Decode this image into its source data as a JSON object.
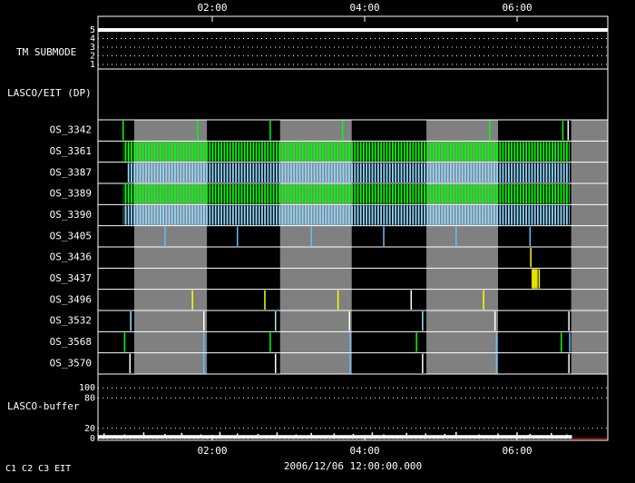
{
  "chart_data": {
    "type": "timeline",
    "xlim": [
      0.5,
      7.19
    ],
    "xticks": [
      {
        "value": 2,
        "label": "02:00"
      },
      {
        "value": 4,
        "label": "04:00"
      },
      {
        "value": 6,
        "label": "06:00"
      }
    ],
    "date": "2006/12/06 12:00:00.000",
    "shading": {
      "color": "#808080",
      "spans": [
        [
          0.976,
          1.93
        ],
        [
          2.89,
          3.83
        ],
        [
          4.81,
          5.75
        ],
        [
          6.71,
          7.19
        ]
      ]
    },
    "tm_submode": {
      "label": "TM SUBMODE",
      "ylim": [
        0.47,
        6.58
      ],
      "yticks": [
        1,
        2,
        3,
        4,
        5
      ],
      "color": "#ffffff",
      "x": [
        0.5,
        7.19
      ],
      "values": [
        5,
        5
      ]
    },
    "dp_label": "LASCO/EIT (DP)",
    "rows": [
      {
        "name": "OS_3342",
        "series": [
          {
            "color": "#00ff00",
            "times": [
              0.83,
              1.81,
              2.76,
              3.71,
              5.64,
              6.6
            ]
          },
          {
            "color": "#ffffff",
            "times": [
              6.67
            ]
          }
        ]
      },
      {
        "name": "OS_3361",
        "series": [
          {
            "color": "#00ff00",
            "spans": [
              [
                0.83,
                6.69
              ]
            ]
          }
        ]
      },
      {
        "name": "OS_3387",
        "series": [
          {
            "color": "#90d8ff",
            "spans": [
              [
                0.88,
                6.69
              ]
            ]
          }
        ]
      },
      {
        "name": "OS_3389",
        "series": [
          {
            "color": "#00ff00",
            "spans": [
              [
                0.83,
                6.69
              ]
            ]
          }
        ]
      },
      {
        "name": "OS_3390",
        "series": [
          {
            "color": "#90d8ff",
            "spans": [
              [
                0.83,
                6.69
              ]
            ]
          }
        ]
      },
      {
        "name": "OS_3405",
        "series": [
          {
            "color": "#60c0ff",
            "times": [
              1.38,
              2.33,
              3.3,
              4.25,
              5.2,
              6.17
            ]
          }
        ]
      },
      {
        "name": "OS_3436",
        "series": [
          {
            "color": "#ffff00",
            "times": [
              6.18
            ]
          }
        ]
      },
      {
        "name": "OS_3437",
        "series": [
          {
            "color": "#ffff00",
            "times": [
              6.2,
              6.22,
              6.24,
              6.26,
              6.29
            ]
          }
        ]
      },
      {
        "name": "OS_3496",
        "series": [
          {
            "color": "#ffff00",
            "times": [
              1.74,
              2.69,
              3.65,
              5.56
            ]
          },
          {
            "color": "#ffffff",
            "times": [
              4.61
            ]
          }
        ]
      },
      {
        "name": "OS_3532",
        "series": [
          {
            "color": "#a0e8ff",
            "times": [
              0.93,
              2.83,
              4.76
            ]
          },
          {
            "color": "#ffffff",
            "times": [
              1.89,
              3.8,
              5.71,
              6.68
            ]
          }
        ]
      },
      {
        "name": "OS_3568",
        "series": [
          {
            "color": "#00ff00",
            "times": [
              0.85,
              2.76,
              4.68,
              6.58
            ]
          },
          {
            "color": "#60c0ff",
            "times": [
              1.89,
              3.81,
              5.73,
              6.69
            ]
          }
        ]
      },
      {
        "name": "OS_3570",
        "series": [
          {
            "color": "#ffffff",
            "times": [
              0.92,
              2.83,
              4.76,
              6.68
            ]
          },
          {
            "color": "#60c0ff",
            "times": [
              1.89,
              3.81,
              5.73
            ]
          }
        ]
      }
    ],
    "buffer": {
      "label": "LASCO-buffer",
      "ylim": [
        -3.6,
        127
      ],
      "yticks": [
        0,
        20,
        80,
        100
      ],
      "color": "#ffffff",
      "level": 3,
      "span": [
        0.5,
        6.72
      ],
      "spike_times": [
        0.58,
        0.85,
        1.1,
        1.38,
        1.6,
        1.85,
        2.1,
        2.33,
        2.6,
        2.85,
        3.1,
        3.3,
        3.6,
        3.85,
        4.1,
        4.25,
        4.55,
        4.8,
        5.05,
        5.2,
        5.5,
        5.75,
        6.0,
        6.17,
        6.45,
        6.65
      ],
      "spike_values": [
        10,
        8,
        12,
        9,
        11,
        8,
        13,
        10,
        9,
        12,
        8,
        11,
        10,
        9,
        12,
        8,
        11,
        10,
        9,
        13,
        8,
        10,
        12,
        9,
        11,
        8
      ],
      "empty_color": "#ff0000",
      "empty_span": [
        6.72,
        7.19
      ]
    },
    "legend": [
      {
        "label": "C1",
        "color": "#ff3030"
      },
      {
        "label": "C2",
        "color": "#00ff00"
      },
      {
        "label": "C3",
        "color": "#ffffff"
      },
      {
        "label": "EIT",
        "color": "#ffffff"
      }
    ]
  }
}
